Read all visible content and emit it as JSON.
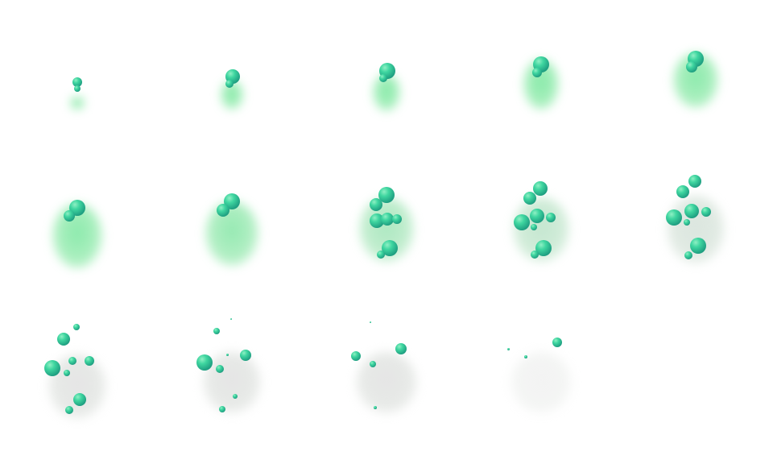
{
  "sprite_sheet": {
    "frame_count": 14,
    "columns": 5,
    "rows": 3,
    "colors": {
      "background": "#ffffff",
      "smoke_green": "#5ee38c",
      "smoke_grey": "#dcdcdc",
      "bubble_light": "#3fd6a0",
      "bubble_dark": "#0b7d6e"
    }
  }
}
